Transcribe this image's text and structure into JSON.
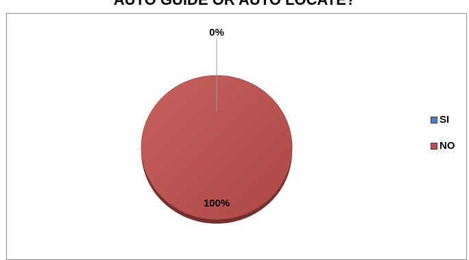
{
  "chart_data": {
    "type": "pie",
    "title": "AUTO GUIDE OR AUTO LOCATE?",
    "categories": [
      "SI",
      "NO"
    ],
    "values": [
      0,
      100
    ],
    "data_labels": [
      "0%",
      "100%"
    ],
    "colors": [
      "#4f81bd",
      "#c0504d"
    ],
    "legend_position": "right",
    "grid": false
  }
}
